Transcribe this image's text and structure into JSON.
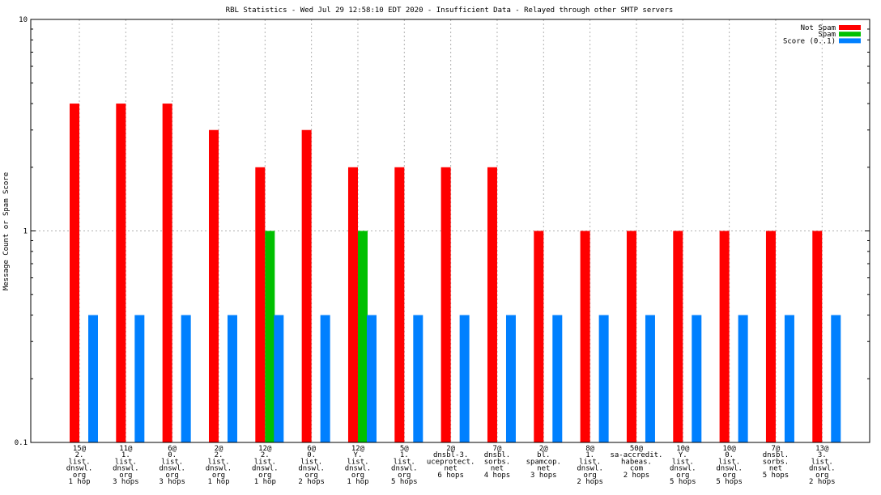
{
  "chart_data": {
    "type": "bar",
    "title": "RBL Statistics - Wed Jul 29 12:58:10 EDT 2020 - Insufficient Data - Relayed through other SMTP servers",
    "ylabel": "Message Count or Spam Score",
    "xlabel": "",
    "yscale": "log",
    "ylim": [
      0.1,
      10
    ],
    "yticks": [
      {
        "value": 0.1,
        "label": "0.1"
      },
      {
        "value": 1,
        "label": "1"
      },
      {
        "value": 10,
        "label": "10"
      }
    ],
    "grid": true,
    "legend_position": "top-right",
    "categories": [
      [
        "15@",
        "2.",
        "list.",
        "dnswl.",
        "org",
        "1 hop"
      ],
      [
        "11@",
        "1.",
        "list.",
        "dnswl.",
        "org",
        "3 hops"
      ],
      [
        "6@",
        "0.",
        "list.",
        "dnswl.",
        "org",
        "3 hops"
      ],
      [
        "2@",
        "2.",
        "list.",
        "dnswl.",
        "org",
        "1 hop"
      ],
      [
        "12@",
        "2.",
        "list.",
        "dnswl.",
        "org",
        "1 hop"
      ],
      [
        "6@",
        "0.",
        "list.",
        "dnswl.",
        "org",
        "2 hops"
      ],
      [
        "12@",
        "Y.",
        "list.",
        "dnswl.",
        "org",
        "1 hop"
      ],
      [
        "5@",
        "1.",
        "list.",
        "dnswl.",
        "org",
        "5 hops"
      ],
      [
        "2@",
        "dnsbl-3.",
        "uceprotect.",
        "net",
        "6 hops"
      ],
      [
        "7@",
        "dnsbl.",
        "sorbs.",
        "net",
        "4 hops"
      ],
      [
        "2@",
        "bl.",
        "spamcop.",
        "net",
        "3 hops"
      ],
      [
        "8@",
        "1.",
        "list.",
        "dnswl.",
        "org",
        "2 hops"
      ],
      [
        "50@",
        "sa-accredit.",
        "habeas.",
        "com",
        "2 hops"
      ],
      [
        "10@",
        "Y.",
        "list.",
        "dnswl.",
        "org",
        "5 hops"
      ],
      [
        "10@",
        "0.",
        "list.",
        "dnswl.",
        "org",
        "5 hops"
      ],
      [
        "7@",
        "dnsbl.",
        "sorbs.",
        "net",
        "5 hops"
      ],
      [
        "13@",
        "3.",
        "list.",
        "dnswl.",
        "org",
        "2 hops"
      ]
    ],
    "series": [
      {
        "name": "Not Spam",
        "color": "#ff0000",
        "values": [
          4,
          4,
          4,
          3,
          2,
          3,
          2,
          2,
          2,
          2,
          1,
          1,
          1,
          1,
          1,
          1,
          1
        ]
      },
      {
        "name": "Spam",
        "color": "#00c000",
        "values": [
          0,
          0,
          0,
          0,
          1,
          0,
          1,
          0,
          0,
          0,
          0,
          0,
          0,
          0,
          0,
          0,
          0
        ]
      },
      {
        "name": "Score (0..1)",
        "color": "#0080ff",
        "values": [
          0.4,
          0.4,
          0.4,
          0.4,
          0.4,
          0.4,
          0.4,
          0.4,
          0.4,
          0.4,
          0.4,
          0.4,
          0.4,
          0.4,
          0.4,
          0.4,
          0.4
        ]
      }
    ]
  }
}
